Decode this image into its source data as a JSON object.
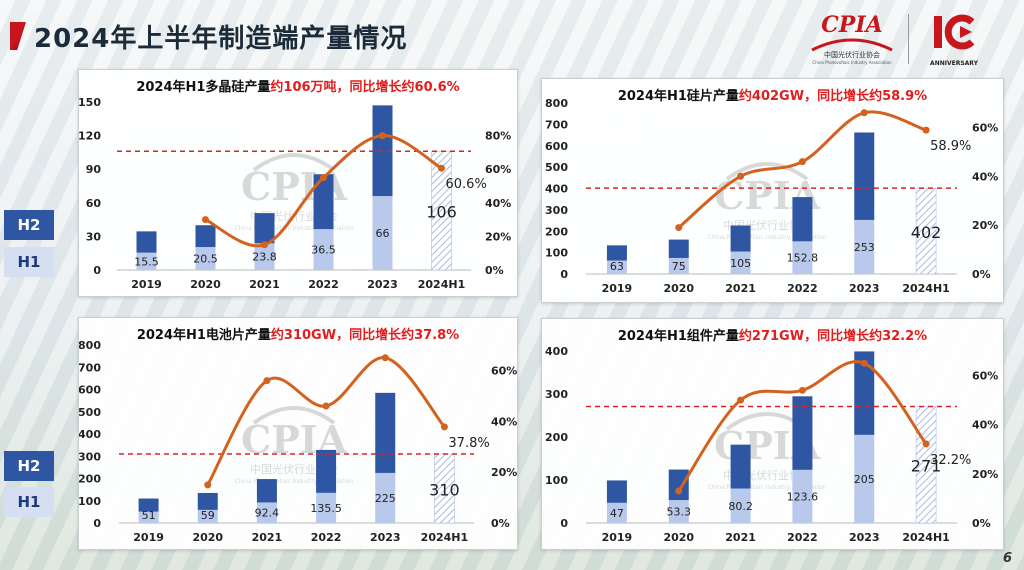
{
  "page_title": "2024年上半年制造端产量情况",
  "logo": {
    "cpia_text": "CPIA",
    "cpia_sub": "中国光伏行业协会",
    "cpia_sub_en": "China Photovoltaic Industry Association",
    "anniversary": "ANNIVERSARY"
  },
  "watermark": {
    "text": "CPIA",
    "sub": "中国光伏行业协会",
    "sub_en": "China Photovoltaic Industry Association"
  },
  "legend": {
    "h2": "H2",
    "h1": "H1"
  },
  "page_number": "6",
  "colors": {
    "h2": "#2f56a3",
    "h1": "#b9c9ec",
    "line": "#d4621f",
    "dashed": "#d62525",
    "highlight": "#e11d1d",
    "forecast_hatch": "#8fa5d6"
  },
  "chart_data": [
    {
      "type": "bar",
      "title_prefix": "2024年H1多晶硅产量",
      "title_highlight": "约106万吨，同比增长约60.6%",
      "categories": [
        "2019",
        "2020",
        "2021",
        "2022",
        "2023",
        "2024H1"
      ],
      "series": [
        {
          "values": [
            15.5,
            20.5,
            23.8,
            36.5,
            66,
            106
          ],
          "labels": [
            "15.5",
            "20.5",
            "23.8",
            "36.5",
            "66",
            "106"
          ]
        },
        {
          "values": [
            19,
            19.5,
            27,
            49,
            81,
            null
          ]
        },
        {
          "values": [
            null,
            30,
            15,
            55,
            80,
            60.6
          ],
          "labels": [
            "",
            "",
            "",
            "",
            "",
            "60.6%"
          ]
        }
      ],
      "y_left": {
        "ticks": [
          0,
          30,
          60,
          90,
          120,
          150
        ],
        "range": [
          0,
          150
        ]
      },
      "y_right": {
        "ticks": [
          "0%",
          "20%",
          "40%",
          "60%",
          "80%"
        ],
        "range": [
          0,
          100
        ]
      },
      "dashed_reference": 106
    },
    {
      "type": "bar",
      "title_prefix": "2024年H1硅片产量",
      "title_highlight": "约402GW，同比增长约58.9%",
      "categories": [
        "2019",
        "2020",
        "2021",
        "2022",
        "2023",
        "2024H1"
      ],
      "series": [
        {
          "values": [
            63,
            75,
            105,
            152.8,
            253,
            402
          ],
          "labels": [
            "63",
            "75",
            "105",
            "152.8",
            "253",
            "402"
          ]
        },
        {
          "values": [
            71,
            86,
            122,
            207,
            409,
            null
          ]
        },
        {
          "values": [
            null,
            19,
            40,
            46,
            66,
            58.9
          ],
          "labels": [
            "",
            "",
            "",
            "",
            "",
            "58.9%"
          ]
        }
      ],
      "y_left": {
        "ticks": [
          0,
          100,
          200,
          300,
          400,
          500,
          600,
          700,
          800
        ],
        "range": [
          0,
          800
        ]
      },
      "y_right": {
        "ticks": [
          "0%",
          "20%",
          "40%",
          "60%"
        ],
        "range": [
          0,
          70
        ]
      },
      "dashed_reference": 402
    },
    {
      "type": "bar",
      "title_prefix": "2024年H1电池片产量",
      "title_highlight": "约310GW，同比增长约37.8%",
      "categories": [
        "2019",
        "2020",
        "2021",
        "2022",
        "2023",
        "2024H1"
      ],
      "series": [
        {
          "values": [
            51,
            59,
            92.4,
            135.5,
            225,
            310
          ],
          "labels": [
            "51",
            "59",
            "92.4",
            "135.5",
            "225",
            "310"
          ]
        },
        {
          "values": [
            59,
            76,
            105,
            193,
            360,
            null
          ]
        },
        {
          "values": [
            null,
            15,
            56,
            46,
            65,
            37.8
          ],
          "labels": [
            "",
            "",
            "",
            "",
            "",
            "37.8%"
          ]
        }
      ],
      "y_left": {
        "ticks": [
          0,
          100,
          200,
          300,
          400,
          500,
          600,
          700,
          800
        ],
        "range": [
          0,
          800
        ]
      },
      "y_right": {
        "ticks": [
          "0%",
          "20%",
          "40%",
          "60%"
        ],
        "range": [
          0,
          70
        ]
      },
      "dashed_reference": 310
    },
    {
      "type": "bar",
      "title_prefix": "2024年H1组件产量",
      "title_highlight": "约271GW，同比增长约32.2%",
      "categories": [
        "2019",
        "2020",
        "2021",
        "2022",
        "2023",
        "2024H1"
      ],
      "series": [
        {
          "values": [
            47,
            53.3,
            80.2,
            123.6,
            205,
            271
          ],
          "labels": [
            "47",
            "53.3",
            "80.2",
            "123.6",
            "205",
            "271"
          ]
        },
        {
          "values": [
            52,
            71,
            102,
            171,
            194,
            null
          ]
        },
        {
          "values": [
            null,
            13,
            50,
            54,
            65,
            32.2
          ],
          "labels": [
            "",
            "",
            "",
            "",
            "",
            "32.2%"
          ]
        }
      ],
      "y_left": {
        "ticks": [
          0,
          100,
          200,
          300,
          400
        ],
        "range": [
          0,
          400
        ]
      },
      "y_right": {
        "ticks": [
          "0%",
          "20%",
          "40%",
          "60%"
        ],
        "range": [
          0,
          70
        ]
      },
      "dashed_reference": 271
    }
  ]
}
